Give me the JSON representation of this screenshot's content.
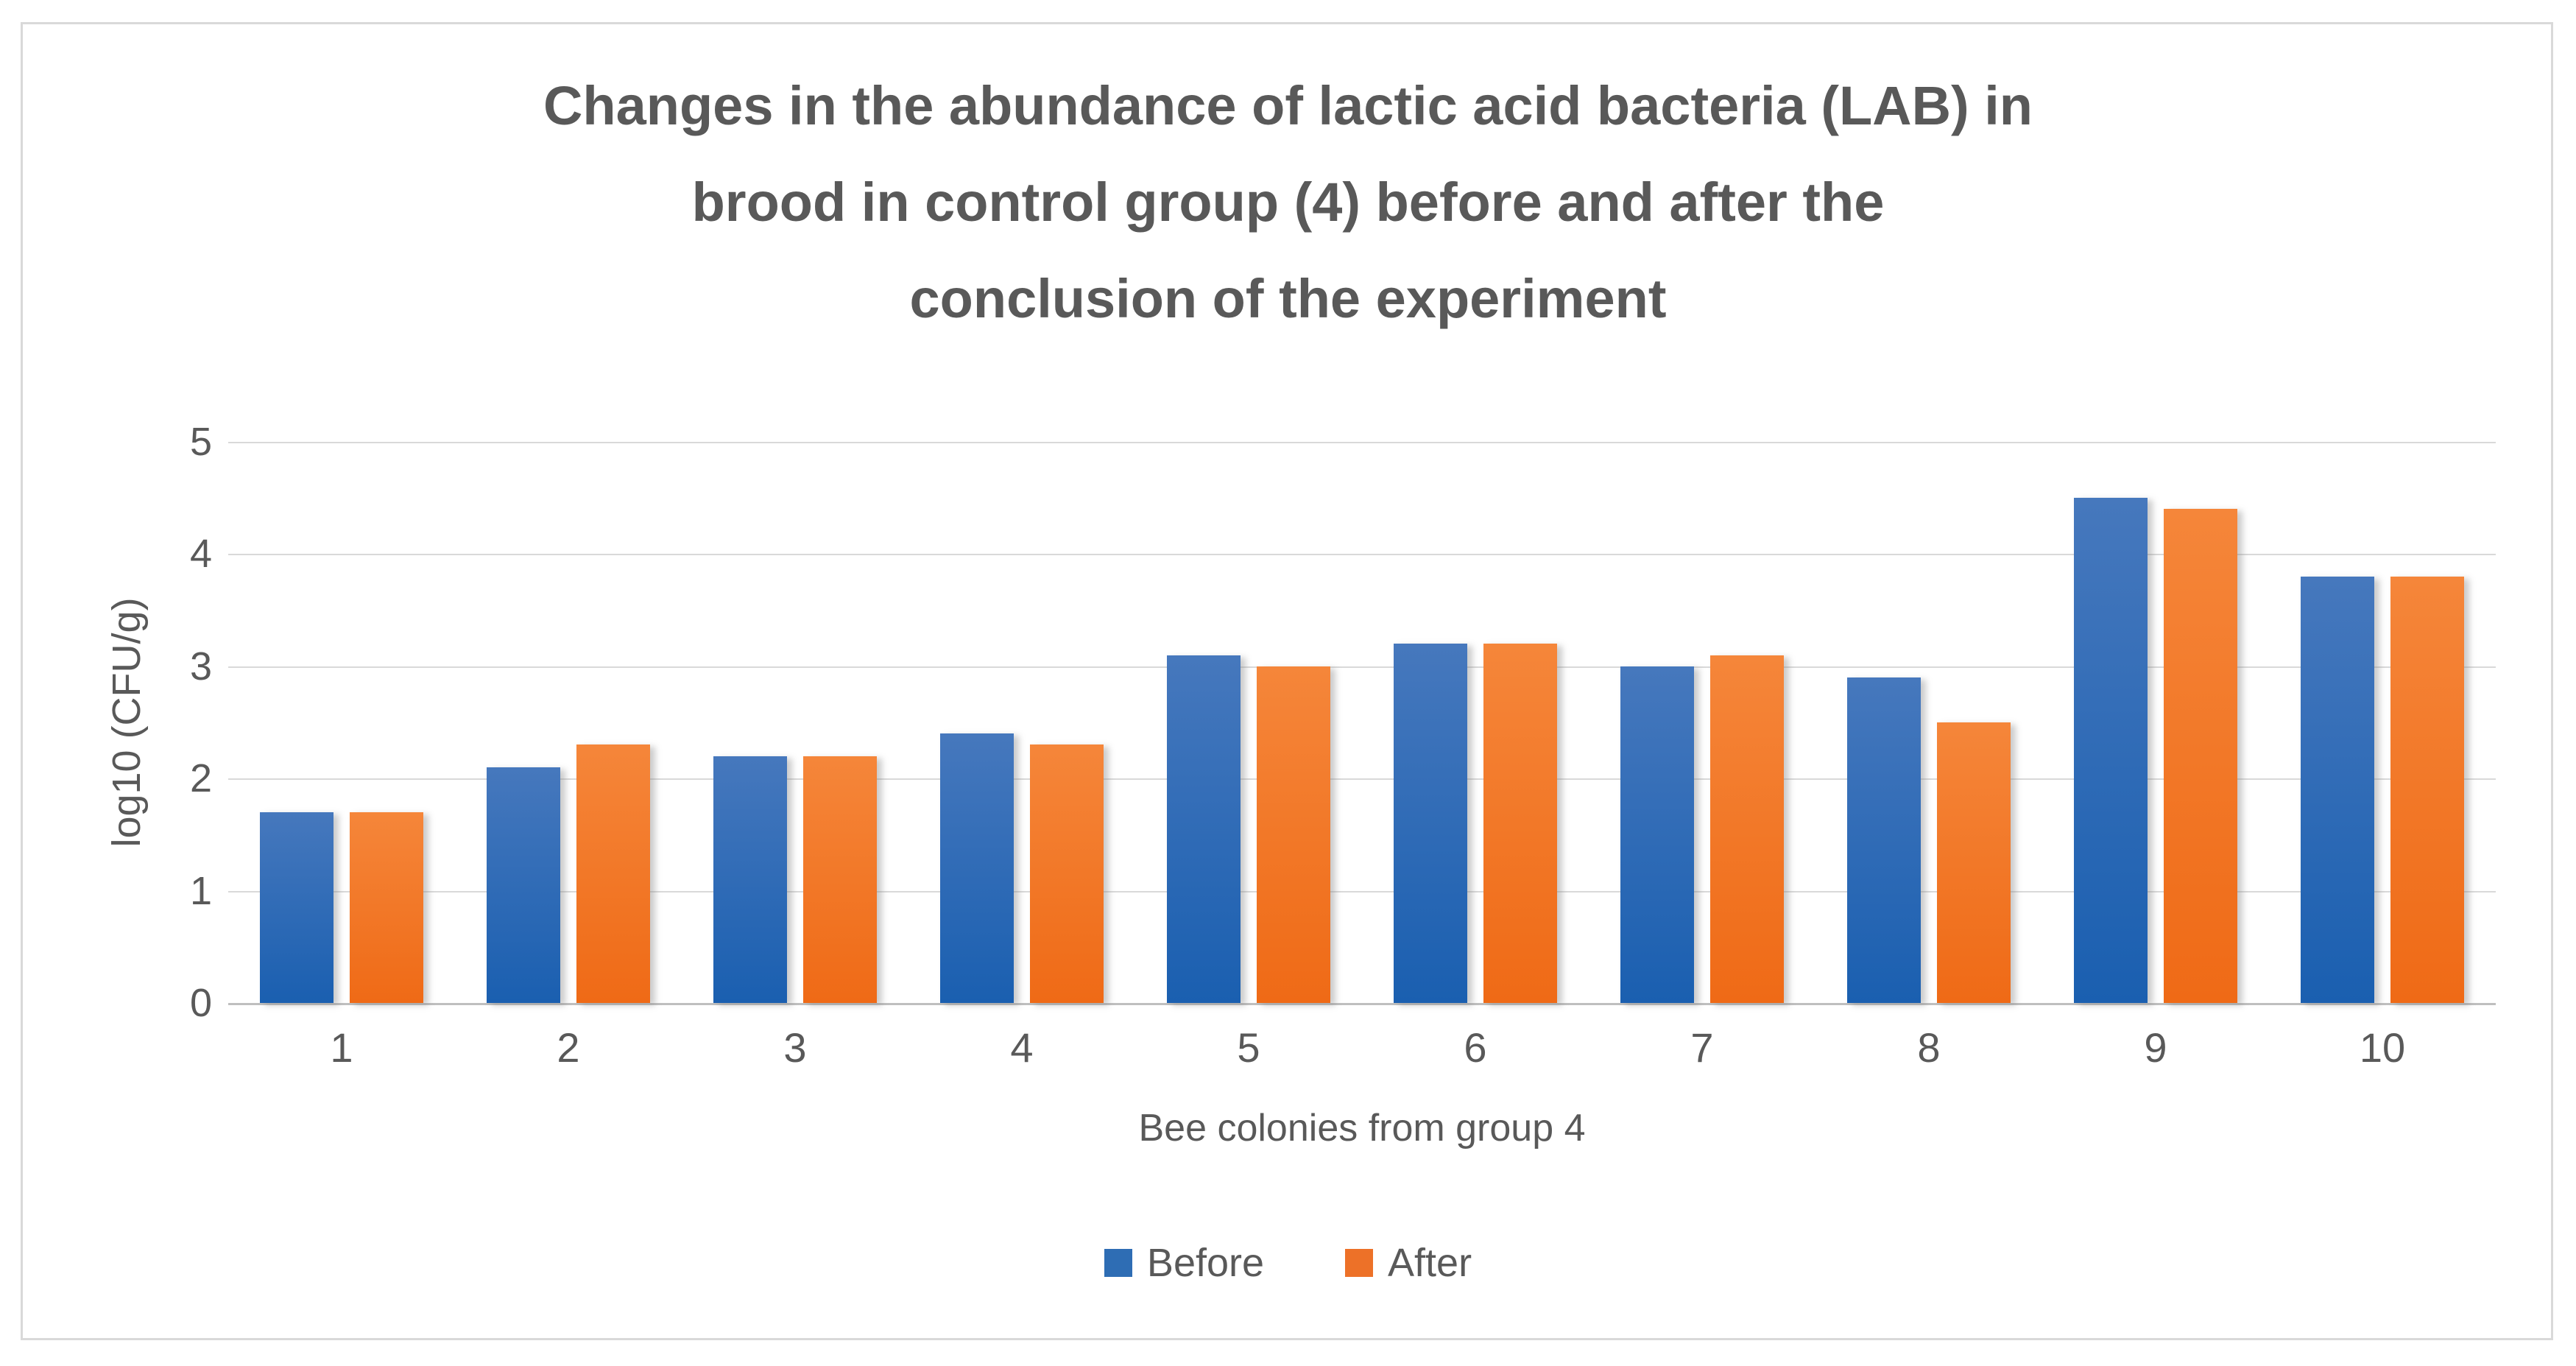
{
  "figure": {
    "background_color": "#FFFFFF",
    "border_color": "#D9D9D9"
  },
  "chart_data": {
    "type": "bar",
    "title": "Changes in the abundance of lactic acid bacteria (LAB) in brood in control group (4) before and after the conclusion of the experiment",
    "title_lines": [
      "Changes in the abundance of lactic acid bacteria (LAB) in",
      "brood in control group (4) before and after the",
      "conclusion of the experiment"
    ],
    "title_color": "#595959",
    "xlabel": "Bee colonies from group 4",
    "ylabel": "log10 (CFU/g)",
    "categories": [
      "1",
      "2",
      "3",
      "4",
      "5",
      "6",
      "7",
      "8",
      "9",
      "10"
    ],
    "series": [
      {
        "name": "Before",
        "color": "#2E6DB4",
        "gradient_top": "#4678BD",
        "gradient_bottom": "#1A5FB0",
        "values": [
          1.7,
          2.1,
          2.2,
          2.4,
          3.1,
          3.2,
          3.0,
          2.9,
          4.5,
          3.8
        ]
      },
      {
        "name": "After",
        "color": "#ED7128",
        "gradient_top": "#F5863A",
        "gradient_bottom": "#EF6A16",
        "values": [
          1.7,
          2.3,
          2.2,
          2.3,
          3.0,
          3.2,
          3.1,
          2.5,
          4.4,
          3.8
        ]
      }
    ],
    "ylim": [
      0,
      5
    ],
    "yticks": [
      "0",
      "1",
      "2",
      "3",
      "4",
      "5"
    ],
    "grid": true,
    "gridline_color": "#D9D9D9",
    "axis_line_color": "#BFBFBF",
    "tick_label_color": "#595959",
    "legend_position": "bottom"
  }
}
